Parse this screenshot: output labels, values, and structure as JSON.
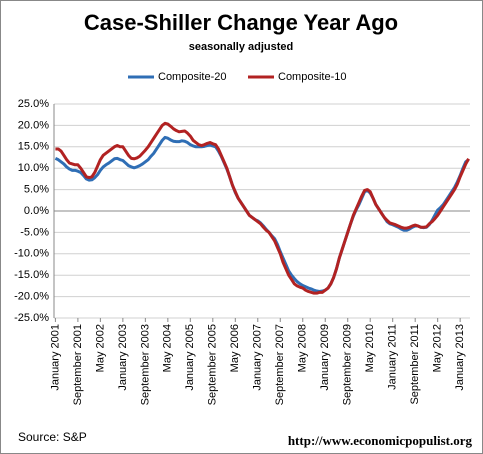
{
  "chart_data": {
    "type": "line",
    "title": "Case-Shiller Change Year Ago",
    "subtitle": "seasonally adjusted",
    "source": "Source: S&P",
    "url": "http://www.economicpopulist.org",
    "legend": "top",
    "grid": true,
    "ylim": [
      -25,
      25
    ],
    "yticks": [
      {
        "value": 25,
        "label": "25.0%"
      },
      {
        "value": 20,
        "label": "20.0%"
      },
      {
        "value": 15,
        "label": "15.0%"
      },
      {
        "value": 10,
        "label": "10.0%"
      },
      {
        "value": 5,
        "label": "5.0%"
      },
      {
        "value": 0,
        "label": "0.0%"
      },
      {
        "value": -5,
        "label": "-5.0%"
      },
      {
        "value": -10,
        "label": "-10.0%"
      },
      {
        "value": -15,
        "label": "-15.0%"
      },
      {
        "value": -20,
        "label": "-20.0%"
      },
      {
        "value": -25,
        "label": "-25.0%"
      }
    ],
    "categories": [
      "January 2001",
      null,
      null,
      null,
      null,
      null,
      null,
      null,
      "September 2001",
      null,
      null,
      null,
      null,
      null,
      null,
      null,
      "May 2002",
      null,
      null,
      null,
      null,
      null,
      null,
      null,
      "January 2003",
      null,
      null,
      null,
      null,
      null,
      null,
      null,
      "September 2003",
      null,
      null,
      null,
      null,
      null,
      null,
      null,
      "May 2004",
      null,
      null,
      null,
      null,
      null,
      null,
      null,
      "January 2005",
      null,
      null,
      null,
      null,
      null,
      null,
      null,
      "September 2005",
      null,
      null,
      null,
      null,
      null,
      null,
      null,
      "May 2006",
      null,
      null,
      null,
      null,
      null,
      null,
      null,
      "January 2007",
      null,
      null,
      null,
      null,
      null,
      null,
      null,
      "September 2007",
      null,
      null,
      null,
      null,
      null,
      null,
      null,
      "May 2008",
      null,
      null,
      null,
      null,
      null,
      null,
      null,
      "January 2009",
      null,
      null,
      null,
      null,
      null,
      null,
      null,
      "September 2009",
      null,
      null,
      null,
      null,
      null,
      null,
      null,
      "May 2010",
      null,
      null,
      null,
      null,
      null,
      null,
      null,
      "January 2011",
      null,
      null,
      null,
      null,
      null,
      null,
      null,
      "September 2011",
      null,
      null,
      null,
      null,
      null,
      null,
      null,
      "May 2012",
      null,
      null,
      null,
      null,
      null,
      null,
      null,
      "January 2013",
      null,
      null,
      null
    ],
    "series": [
      {
        "name": "Composite-20",
        "color": "#2f6eb5",
        "values": [
          12.3,
          12,
          11.5,
          11,
          10.3,
          9.8,
          9.5,
          9.5,
          9.3,
          9,
          8.3,
          7.5,
          7.2,
          7.3,
          7.8,
          8.5,
          9.5,
          10.3,
          10.8,
          11.2,
          11.7,
          12.2,
          12.3,
          12,
          11.8,
          11.2,
          10.6,
          10.3,
          10.1,
          10.3,
          10.6,
          11,
          11.5,
          12,
          12.8,
          13.5,
          14.5,
          15.5,
          16.5,
          17.2,
          17,
          16.6,
          16.3,
          16.2,
          16.2,
          16.4,
          16.3,
          16,
          15.5,
          15.2,
          15,
          15,
          15,
          15.1,
          15.3,
          15.4,
          15.2,
          15,
          14,
          12.8,
          11.3,
          9.8,
          8,
          6,
          4.3,
          3,
          2,
          1,
          0,
          -1,
          -1.5,
          -2,
          -2.3,
          -2.8,
          -3.5,
          -4.3,
          -5,
          -5.8,
          -6.5,
          -7.8,
          -9.5,
          -11,
          -12.5,
          -14,
          -15,
          -15.8,
          -16.5,
          -17,
          -17.4,
          -17.7,
          -18,
          -18.2,
          -18.5,
          -18.7,
          -18.8,
          -18.7,
          -18.5,
          -18,
          -17,
          -15.5,
          -13.5,
          -11,
          -9,
          -7,
          -5,
          -3,
          -1.2,
          0.3,
          1.5,
          3,
          4.5,
          4.8,
          4.2,
          3,
          1.5,
          0.5,
          -0.5,
          -1.5,
          -2.5,
          -3,
          -3.2,
          -3.5,
          -3.8,
          -4.2,
          -4.5,
          -4.5,
          -4.2,
          -3.8,
          -3.5,
          -3.5,
          -3.8,
          -3.9,
          -3.8,
          -3.2,
          -2.2,
          -1,
          0.2,
          0.8,
          1.5,
          2.5,
          3.5,
          4.5,
          5.5,
          6.8,
          8.3,
          10,
          11.5,
          12
        ]
      },
      {
        "name": "Composite-10",
        "color": "#b22222",
        "values": [
          14.5,
          14.5,
          14,
          13,
          12,
          11.2,
          11,
          10.8,
          10.8,
          10,
          9,
          8,
          7.8,
          8,
          9,
          10.5,
          12,
          13,
          13.5,
          14,
          14.5,
          15,
          15.3,
          15,
          15,
          14,
          13,
          12.3,
          12.2,
          12.4,
          12.8,
          13.5,
          14.2,
          15,
          16,
          17,
          18,
          19,
          20,
          20.5,
          20.3,
          19.8,
          19.2,
          18.8,
          18.5,
          18.6,
          18.7,
          18.2,
          17.5,
          16.5,
          16,
          15.5,
          15.3,
          15.5,
          15.8,
          16,
          15.7,
          15.5,
          14.5,
          13,
          11.5,
          10,
          8,
          6,
          4.5,
          3,
          2,
          1,
          0,
          -1,
          -1.5,
          -2,
          -2.5,
          -3,
          -3.8,
          -4.5,
          -5,
          -6,
          -7,
          -8.5,
          -10,
          -12,
          -13.5,
          -15,
          -16,
          -17,
          -17.5,
          -17.8,
          -18,
          -18.5,
          -18.8,
          -19,
          -19.2,
          -19.2,
          -19,
          -19,
          -18.5,
          -18,
          -17,
          -15.5,
          -13.5,
          -11,
          -9,
          -7,
          -5,
          -3,
          -1,
          0.5,
          2,
          3.5,
          4.8,
          5,
          4.5,
          3,
          1.5,
          0.5,
          -0.5,
          -1.5,
          -2.2,
          -2.8,
          -3,
          -3.2,
          -3.5,
          -3.8,
          -4,
          -4,
          -3.8,
          -3.5,
          -3.3,
          -3.5,
          -3.8,
          -3.8,
          -3.7,
          -3,
          -2.5,
          -1.8,
          -1,
          0,
          1,
          2,
          3,
          4,
          5,
          6.3,
          8,
          9.5,
          11,
          12.2
        ]
      }
    ]
  }
}
